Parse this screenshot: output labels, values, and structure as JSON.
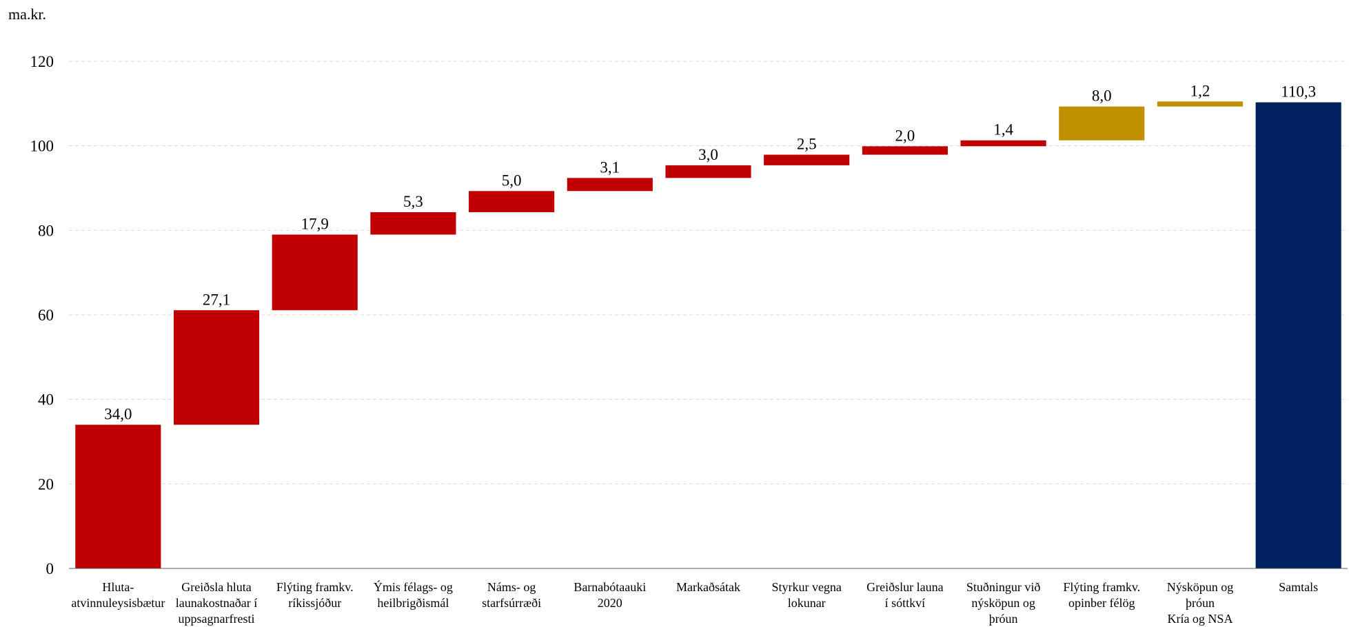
{
  "chart_data": {
    "type": "bar",
    "subtype": "waterfall",
    "unit_label": "ma.kr.",
    "title": "",
    "xlabel": "",
    "ylabel": "",
    "ylim": [
      0,
      120
    ],
    "yticks": [
      0,
      20,
      40,
      60,
      80,
      100,
      120
    ],
    "grid": true,
    "legend": "none",
    "categories": [
      [
        "Hluta-",
        "atvinnuleysisbætur"
      ],
      [
        "Greiðsla hluta",
        "launakostnaðar í",
        "uppsagnarfresti"
      ],
      [
        "Flýting framkv.",
        "ríkissjóður"
      ],
      [
        "Ýmis félags- og",
        "heilbrigðismál"
      ],
      [
        "Náms- og",
        "starfsúrræði"
      ],
      [
        "Barnabótaauki",
        "2020"
      ],
      [
        "Markaðsátak"
      ],
      [
        "Styrkur vegna",
        "lokunar"
      ],
      [
        "Greiðslur launa",
        "í sóttkví"
      ],
      [
        "Stuðningur við",
        "nýsköpun og",
        "þróun"
      ],
      [
        "Flýting framkv.",
        "opinber félög"
      ],
      [
        "Nýsköpun og",
        "þróun",
        "Kría og NSA"
      ],
      [
        "Samtals"
      ]
    ],
    "values": [
      34.0,
      27.1,
      17.9,
      5.3,
      5.0,
      3.1,
      3.0,
      2.5,
      2.0,
      1.4,
      8.0,
      1.2,
      110.3
    ],
    "value_labels": [
      "34,0",
      "27,1",
      "17,9",
      "5,3",
      "5,0",
      "3,1",
      "3,0",
      "2,5",
      "2,0",
      "1,4",
      "8,0",
      "1,2",
      "110,3"
    ],
    "bar_kinds": [
      "increment",
      "increment",
      "increment",
      "increment",
      "increment",
      "increment",
      "increment",
      "increment",
      "increment",
      "increment",
      "increment-alt",
      "increment-alt",
      "total"
    ],
    "colors": {
      "increment": "#c00000",
      "increment-alt": "#c09000",
      "total": "#002060",
      "grid": "#d9d9d9",
      "axis": "#595959"
    }
  }
}
